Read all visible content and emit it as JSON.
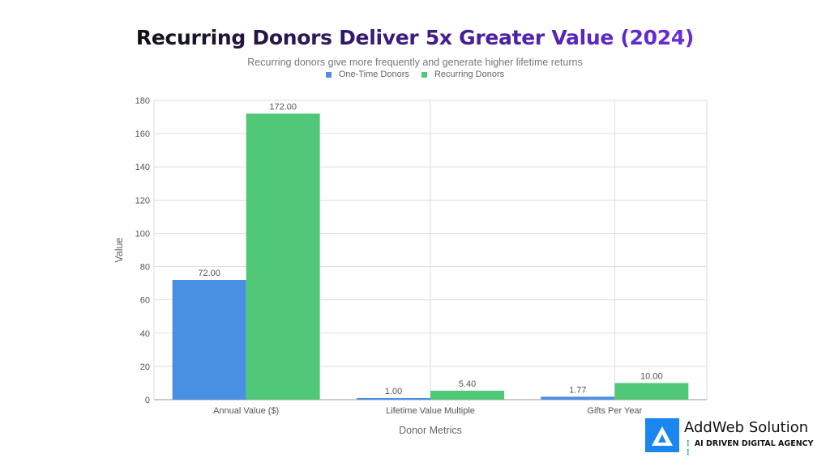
{
  "chart_data": {
    "type": "bar",
    "title": "Recurring Donors Deliver 5x Greater Value (2024)",
    "subtitle": "Recurring donors give more frequently and generate higher lifetime returns",
    "xlabel": "Donor Metrics",
    "ylabel": "Value",
    "ylim": [
      0,
      180
    ],
    "yticks": [
      0,
      20,
      40,
      60,
      80,
      100,
      120,
      140,
      160,
      180
    ],
    "grid": true,
    "legend_position": "top-center",
    "categories": [
      "Annual Value ($)",
      "Lifetime Value Multiple",
      "Gifts Per Year"
    ],
    "series": [
      {
        "name": "One-Time Donors",
        "color": "#4a90e2",
        "values": [
          72.0,
          1.0,
          1.77
        ],
        "labels": [
          "72.00",
          "1.00",
          "1.77"
        ]
      },
      {
        "name": "Recurring Donors",
        "color": "#50c878",
        "values": [
          172.0,
          5.4,
          10.0
        ],
        "labels": [
          "172.00",
          "5.40",
          "10.00"
        ]
      }
    ]
  },
  "logo": {
    "name": "AddWeb Solution",
    "tagline": "AI DRIVEN DIGITAL AGENCY"
  }
}
